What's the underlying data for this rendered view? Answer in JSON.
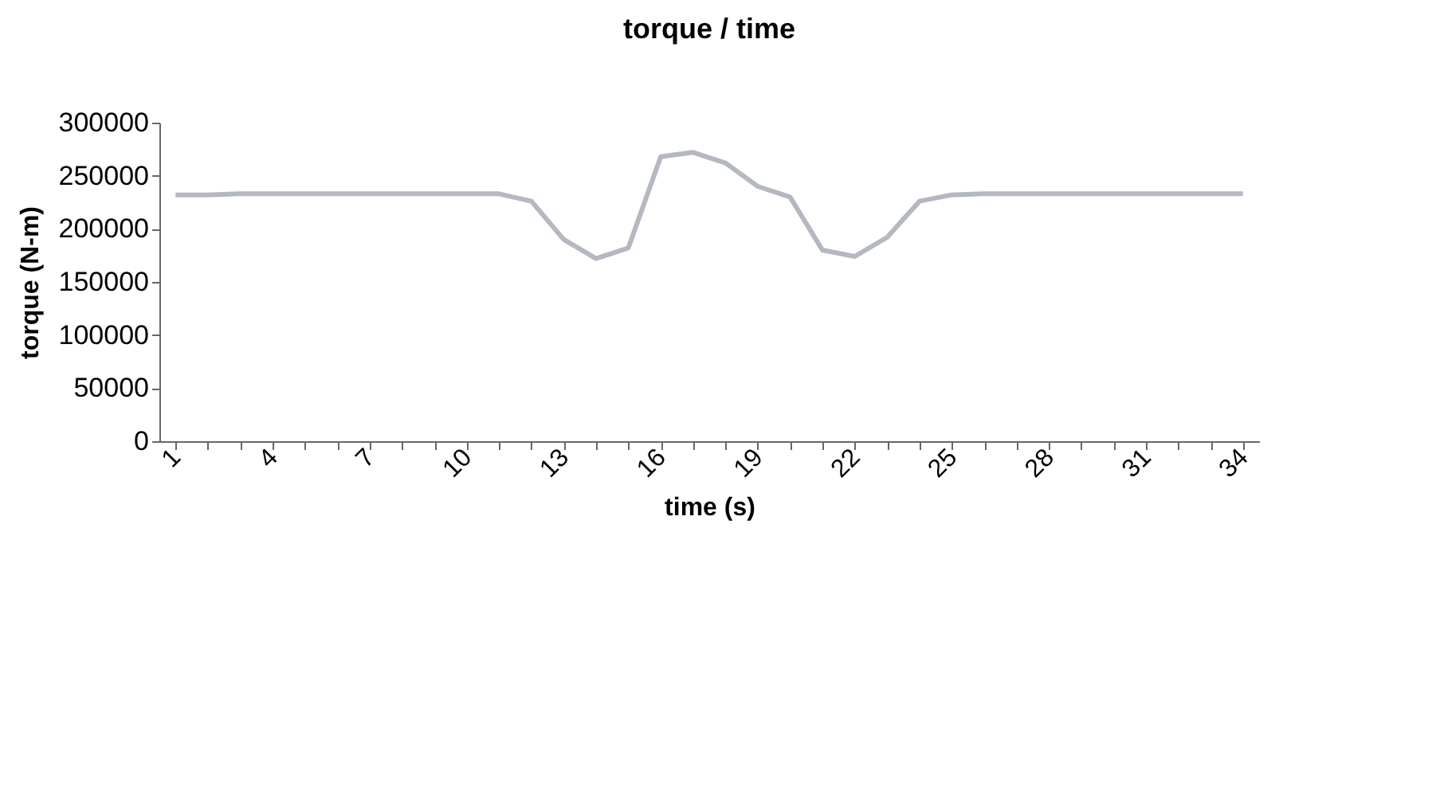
{
  "chart_data": {
    "type": "line",
    "title": "torque / time",
    "xlabel": "time (s)",
    "ylabel": "torque (N-m)",
    "categories": [
      "1",
      null,
      null,
      "4",
      null,
      null,
      "7",
      null,
      null,
      "10",
      null,
      null,
      "13",
      null,
      null,
      "16",
      null,
      null,
      "19",
      null,
      null,
      "22",
      null,
      null,
      "25",
      null,
      null,
      "28",
      null,
      null,
      "31",
      null,
      null,
      "34"
    ],
    "series": [
      {
        "color": "#b4b8c0",
        "values": [
          232000,
          232000,
          233000,
          233000,
          233000,
          233000,
          233000,
          233000,
          233000,
          233000,
          233000,
          226000,
          190000,
          172000,
          182000,
          268000,
          272000,
          262000,
          240000,
          230000,
          180000,
          174000,
          192000,
          226000,
          232000,
          233000,
          233000,
          233000,
          233000,
          233000,
          233000,
          233000,
          233000,
          233000
        ]
      }
    ],
    "ylim": [
      0,
      300000
    ],
    "yticks": [
      0,
      50000,
      100000,
      150000,
      200000,
      250000,
      300000
    ],
    "grid": false,
    "legend": false,
    "marker": "none",
    "line_style": "solid"
  }
}
